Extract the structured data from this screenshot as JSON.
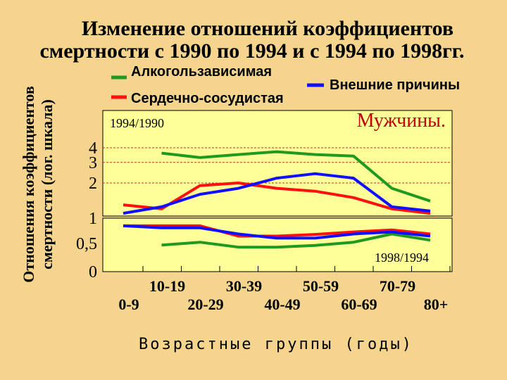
{
  "chart_data": {
    "type": "line",
    "title": "Изменение отношений коэффициентов смертности с 1990 по 1994 и с 1994 по 1998гг.",
    "title_lines": [
      "Изменение отношений коэффициентов",
      "смертности с 1990 по 1994 и с 1994 по 1998гг."
    ],
    "ylabel": "Отношения коэффициентов смертности (лог. шкала)",
    "ylabel_lines": [
      "Отношения коэффициентов",
      "смертности (лог. шкала)"
    ],
    "xlabel": "Возрастные группы (годы)",
    "annotation": "Мужчины.",
    "yscale": "log",
    "yticks": [
      {
        "value": 0,
        "label": "0"
      },
      {
        "value": 0.5,
        "label": "0,5"
      },
      {
        "value": 1,
        "label": "1"
      },
      {
        "value": 2,
        "label": "2"
      },
      {
        "value": 3,
        "label": "3"
      },
      {
        "value": 4,
        "label": "4"
      }
    ],
    "categories": [
      "0-9",
      "10-19",
      "20-29",
      "30-39",
      "40-49",
      "50-59",
      "60-69",
      "70-79",
      "80+"
    ],
    "colors": {
      "alcohol": "#1f9a1f",
      "cardio": "#ff1010",
      "external": "#1010ff",
      "background": "#f5d58e",
      "plot_bg": "#ffff99",
      "grid": "#c03030"
    },
    "legend": [
      {
        "key": "alcohol",
        "label": "Алкогользависимая"
      },
      {
        "key": "cardio",
        "label": "Сердечно-сосудистая"
      },
      {
        "key": "external",
        "label": "Внешние причины"
      }
    ],
    "panels": [
      {
        "label": "1994/1990",
        "series": [
          {
            "key": "alcohol",
            "values": [
              null,
              3.6,
              3.3,
              3.5,
              3.7,
              3.5,
              3.4,
              1.8,
              1.4
            ]
          },
          {
            "key": "cardio",
            "values": [
              1.3,
              1.2,
              1.9,
              2.0,
              1.8,
              1.7,
              1.5,
              1.2,
              1.1
            ]
          },
          {
            "key": "external",
            "values": [
              1.1,
              1.25,
              1.6,
              1.8,
              2.2,
              2.4,
              2.2,
              1.25,
              1.15
            ]
          }
        ]
      },
      {
        "label": "1998/1994",
        "series": [
          {
            "key": "alcohol",
            "values": [
              null,
              0.48,
              0.55,
              0.43,
              0.43,
              0.47,
              0.55,
              0.75,
              0.6
            ]
          },
          {
            "key": "cardio",
            "values": [
              0.95,
              0.95,
              0.95,
              0.7,
              0.7,
              0.74,
              0.8,
              0.85,
              0.75
            ]
          },
          {
            "key": "external",
            "values": [
              0.95,
              0.9,
              0.9,
              0.75,
              0.65,
              0.65,
              0.75,
              0.8,
              0.7
            ]
          }
        ]
      }
    ]
  }
}
